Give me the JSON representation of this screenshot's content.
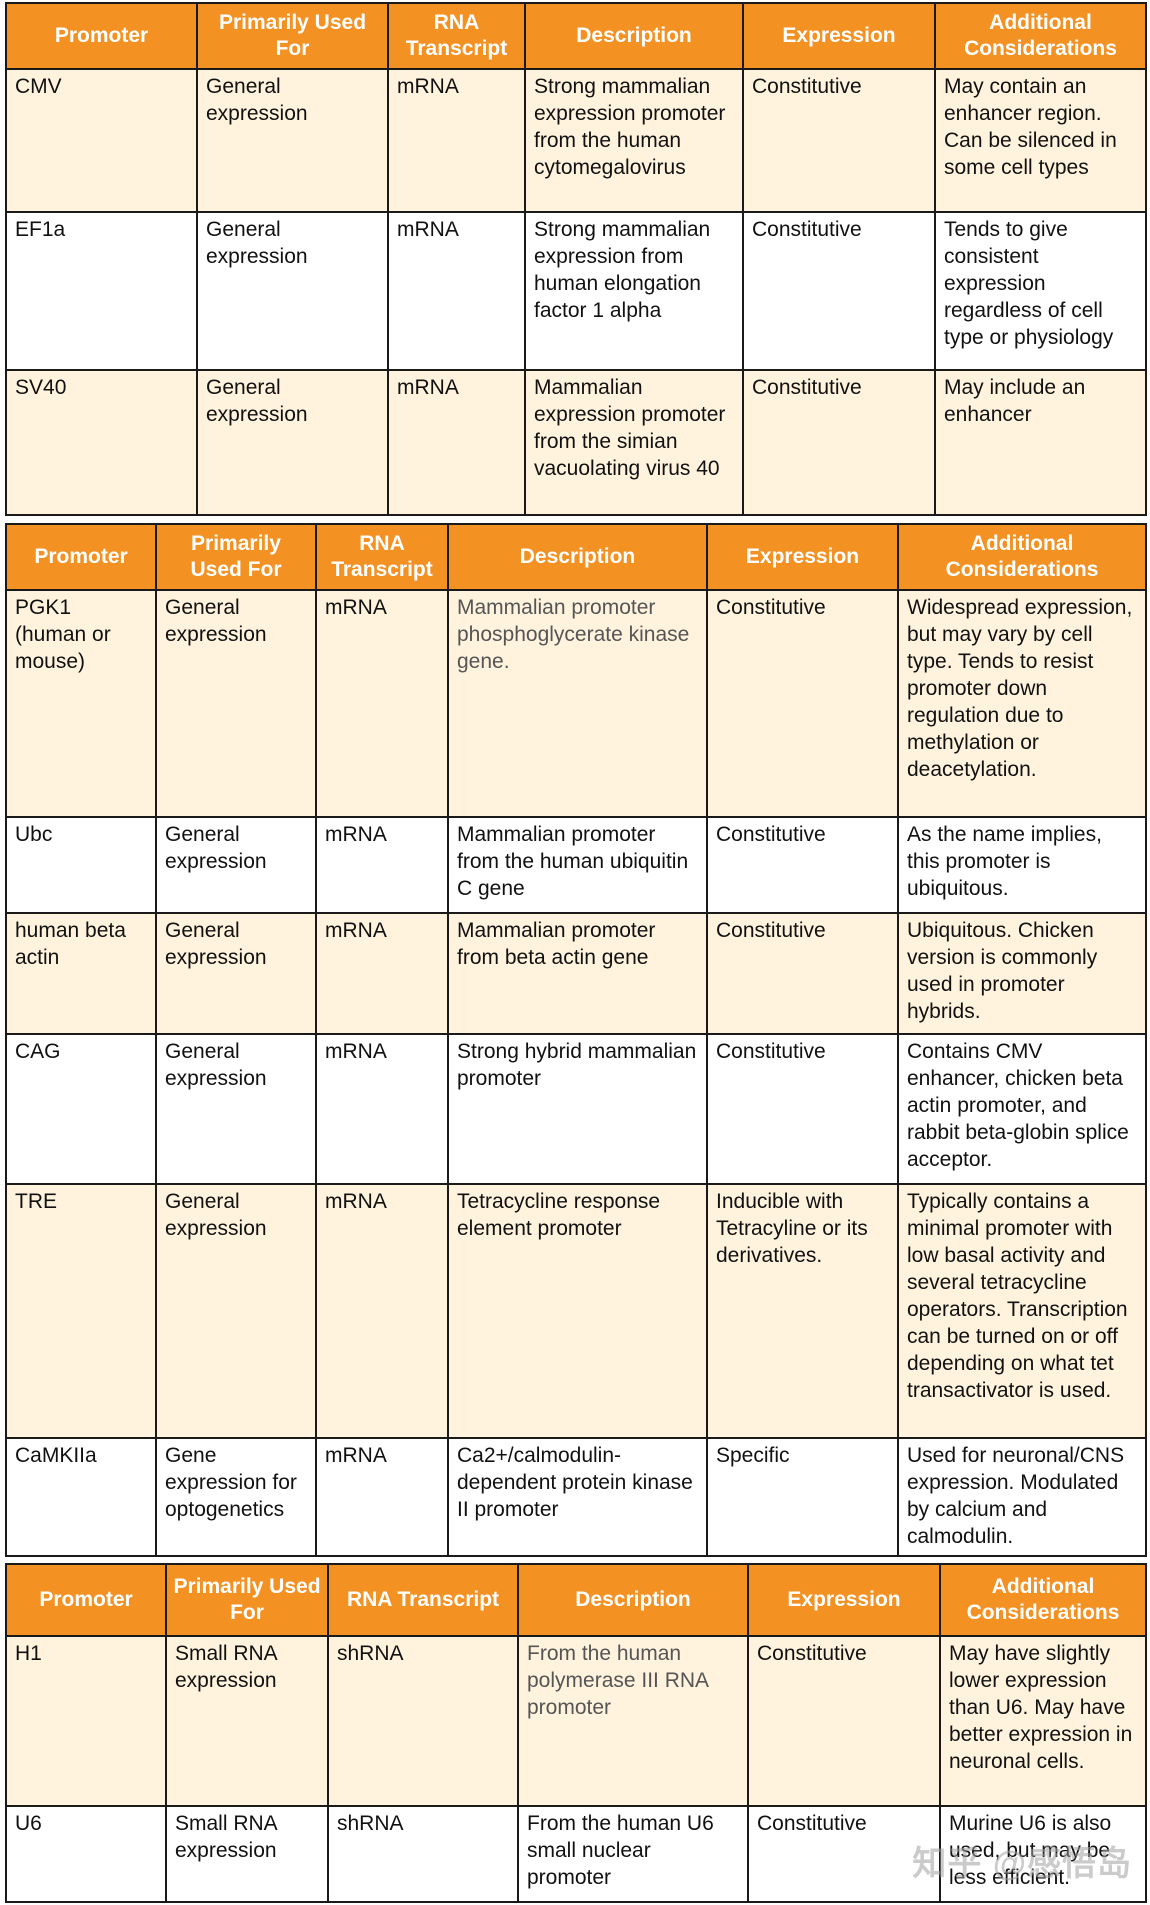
{
  "tables": [
    {
      "headers": [
        "Promoter",
        "Primarily Used For",
        "RNA Transcript",
        "Description",
        "Expression",
        "Additional Considerations"
      ],
      "rows": [
        [
          "CMV",
          "General expression",
          "mRNA",
          "Strong mammalian expression promoter from the human cytomegalovirus",
          "Constitutive",
          "May contain an enhancer region. Can be silenced in some cell types"
        ],
        [
          "EF1a",
          "General expression",
          "mRNA",
          "Strong mammalian expression from human elongation factor 1 alpha",
          "Constitutive",
          "Tends to give consistent expression regardless of cell type or physiology"
        ],
        [
          "SV40",
          "General expression",
          "mRNA",
          "Mammalian expression promoter from the simian vacuolating virus 40",
          "Constitutive",
          "May include an enhancer"
        ]
      ]
    },
    {
      "headers": [
        "Promoter",
        "Primarily Used For",
        "RNA Transcript",
        "Description",
        "Expression",
        "Additional Considerations"
      ],
      "rows": [
        [
          "PGK1 (human or mouse)",
          "General expression",
          "mRNA",
          "Mammalian promoter phosphoglycerate kinase gene.",
          "Constitutive",
          "Widespread expression, but may vary by cell type. Tends to resist promoter down regulation due to methylation or deacetylation."
        ],
        [
          "Ubc",
          "General expression",
          "mRNA",
          "Mammalian promoter from the human ubiquitin C gene",
          "Constitutive",
          "As the name implies, this promoter is ubiquitous."
        ],
        [
          "human beta actin",
          "General expression",
          "mRNA",
          "Mammalian promoter from beta actin gene",
          "Constitutive",
          "Ubiquitous. Chicken version is commonly used in promoter hybrids."
        ],
        [
          "CAG",
          "General expression",
          "mRNA",
          "Strong hybrid mammalian promoter",
          "Constitutive",
          "Contains CMV enhancer, chicken beta actin promoter, and rabbit beta-globin splice acceptor."
        ],
        [
          "TRE",
          "General expression",
          "mRNA",
          "Tetracycline response element promoter",
          "Inducible with Tetracyline or its derivatives.",
          "Typically contains a minimal promoter with low basal activity and several tetracycline operators. Transcription can be turned on or off depending on what tet transactivator is used."
        ],
        [
          "CaMKIIa",
          "Gene expression for optogenetics",
          "mRNA",
          "Ca2+/calmodulin-dependent protein kinase II promoter",
          "Specific",
          "Used for neuronal/CNS expression. Modulated by calcium and calmodulin."
        ]
      ]
    },
    {
      "headers": [
        "Promoter",
        "Primarily Used For",
        "RNA Transcript",
        "Description",
        "Expression",
        "Additional Considerations"
      ],
      "rows": [
        [
          "H1",
          "Small RNA expression",
          "shRNA",
          "From the human polymerase III RNA promoter",
          "Constitutive",
          "May have slightly lower expression than U6. May have better expression in neuronal cells."
        ],
        [
          "U6",
          "Small RNA expression",
          "shRNA",
          "From the human U6 small nuclear promoter",
          "Constitutive",
          "Murine U6 is also used, but may be less efficient."
        ]
      ]
    }
  ],
  "watermark": "知乎 @感悟岛",
  "colors": {
    "header_bg": "#f39123",
    "row_bg": "#fff3de"
  }
}
